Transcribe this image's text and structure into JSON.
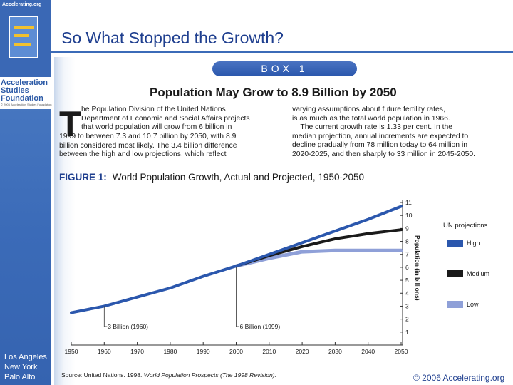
{
  "sidebar": {
    "logo_url": "Accelerating.org",
    "logo_lines": [
      "Acceleration",
      "Studies",
      "Foundation"
    ],
    "logo_copyright": "© 2006 Acceleration Studies Foundation",
    "cities": [
      "Los Angeles",
      "New York",
      "Palo Alto"
    ]
  },
  "slide": {
    "title": "So What Stopped the Growth?",
    "copyright": "© 2006 Accelerating.org",
    "accent_color": "#3b6bb8"
  },
  "box": {
    "label": "BOX 1",
    "heading": "Population May Grow to 8.9 Billion by 2050",
    "dropcap": "T",
    "col_left_1": "he Population Division of the United Nations\nDepartment of Economic and Social Affairs projects\nthat world population will grow from 6 billion in",
    "col_left_2": "1999 to between 7.3 and 10.7 billion by 2050, with 8.9\nbillion considered most likely. The 3.4 billion difference\nbetween the high and low projections, which reflect",
    "col_right": "varying assumptions about future fertility rates,\nis as much as the total world population in 1966.\n    The current growth rate is 1.33 per cent. In the\nmedian projection, annual increments are expected to\ndecline gradually from 78 million today to 64 million in\n2020-2025, and then sharply to 33 million in 2045-2050.",
    "figure_label": "FIGURE 1:",
    "figure_title": "World Population Growth, Actual and Projected, 1950-2050",
    "source_prefix": "Source: United Nations. 1998. ",
    "source_italic": "World Population Prospects (The 1998 Revision)."
  },
  "chart_data": {
    "type": "line",
    "title": "World Population Growth, Actual and Projected, 1950-2050",
    "ylabel": "Population (in billions)",
    "xlabel": "",
    "xlim": [
      1950,
      2050
    ],
    "ylim": [
      0,
      11
    ],
    "x_ticks": [
      1950,
      1960,
      1970,
      1980,
      1990,
      2000,
      2010,
      2020,
      2030,
      2040,
      2050
    ],
    "y_ticks": [
      1,
      2,
      3,
      4,
      5,
      6,
      7,
      8,
      9,
      10,
      11
    ],
    "grid": false,
    "legend_title": "UN projections",
    "legend_position": "right",
    "series": [
      {
        "name": "High",
        "color": "#2b57ad",
        "x": [
          1950,
          1960,
          1970,
          1980,
          1990,
          2000,
          2010,
          2020,
          2030,
          2040,
          2050
        ],
        "y": [
          2.5,
          3.0,
          3.7,
          4.4,
          5.3,
          6.1,
          7.0,
          7.9,
          8.8,
          9.7,
          10.7
        ]
      },
      {
        "name": "Medium",
        "color": "#1a1a1a",
        "x": [
          2000,
          2010,
          2020,
          2030,
          2040,
          2050
        ],
        "y": [
          6.1,
          6.9,
          7.6,
          8.2,
          8.6,
          8.9
        ]
      },
      {
        "name": "Low",
        "color": "#8fa0d8",
        "x": [
          2000,
          2010,
          2020,
          2030,
          2040,
          2050
        ],
        "y": [
          6.1,
          6.7,
          7.2,
          7.3,
          7.3,
          7.3
        ]
      }
    ],
    "annotations": [
      {
        "text": "3 Billion (1960)",
        "x": 1960,
        "y": 3.0
      },
      {
        "text": "6 Billion (1999)",
        "x": 2000,
        "y": 6.0
      }
    ]
  }
}
